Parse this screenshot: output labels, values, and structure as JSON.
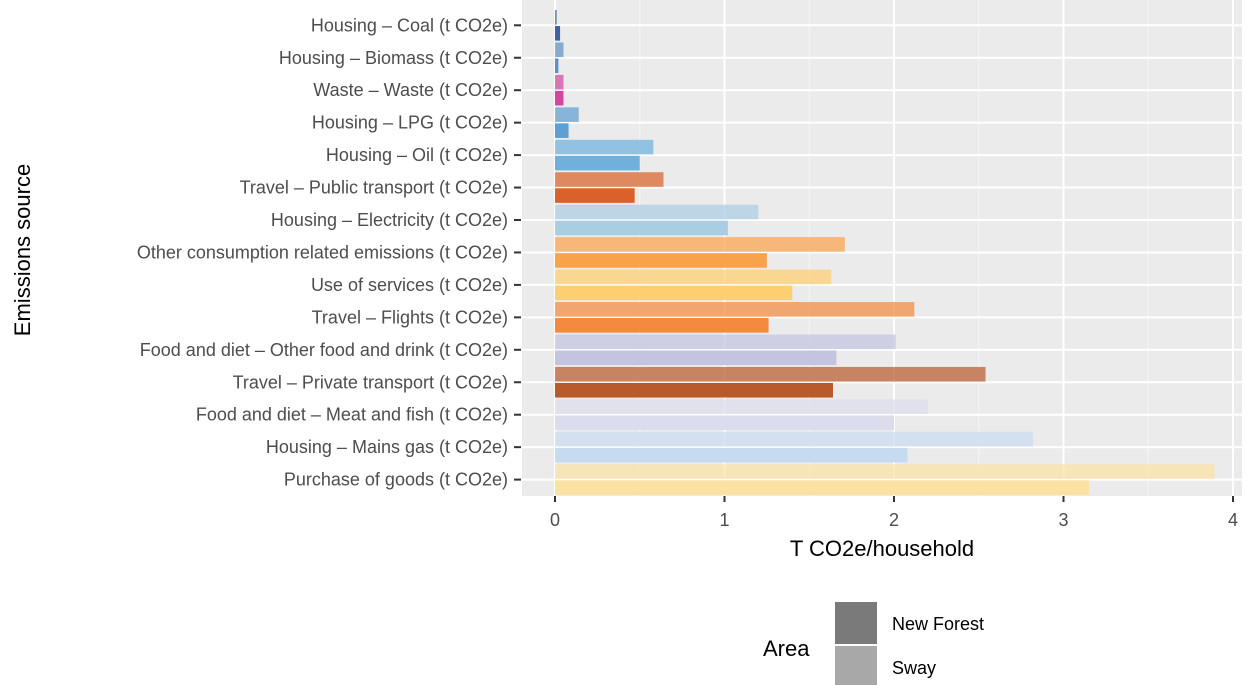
{
  "chart_data": {
    "type": "bar",
    "orientation": "horizontal",
    "xlabel": "T CO2e/household",
    "ylabel": "Emissions source",
    "xlim": [
      -0.19,
      4.1
    ],
    "xticks": [
      0,
      1,
      2,
      3,
      4
    ],
    "grid": true,
    "categories": [
      "Housing – Coal (t CO2e)",
      "Housing – Biomass (t CO2e)",
      "Waste – Waste (t CO2e)",
      "Housing – LPG (t CO2e)",
      "Housing – Oil (t CO2e)",
      "Travel – Public transport (t CO2e)",
      "Housing – Electricity (t CO2e)",
      "Other consumption related emissions (t CO2e)",
      "Use of services (t CO2e)",
      "Travel – Flights (t CO2e)",
      "Food and diet – Other food and drink (t CO2e)",
      "Travel – Private transport (t CO2e)",
      "Food and diet – Meat and fish (t CO2e)",
      "Housing – Mains gas (t CO2e)",
      "Purchase of goods (t CO2e)"
    ],
    "colors": [
      "#3a64a0",
      "#5b91c8",
      "#d147a3",
      "#5f9fd1",
      "#6fb1dc",
      "#d9622b",
      "#a9cde3",
      "#f9a24c",
      "#fdcf70",
      "#f38a3f",
      "#c2c4e0",
      "#b85a2c",
      "#dbdcec",
      "#c7dbf0",
      "#fbe2a3"
    ],
    "series": [
      {
        "name": "Sway",
        "values": [
          0.01,
          0.05,
          0.05,
          0.14,
          0.58,
          0.64,
          1.2,
          1.71,
          1.63,
          2.12,
          2.01,
          2.54,
          2.2,
          2.82,
          3.89
        ]
      },
      {
        "name": "New Forest",
        "values": [
          0.03,
          0.02,
          0.05,
          0.08,
          0.5,
          0.47,
          1.02,
          1.25,
          1.4,
          1.26,
          1.66,
          1.64,
          2.0,
          2.08,
          3.15
        ]
      }
    ],
    "legend": {
      "title": "Area",
      "position": "bottom",
      "entries": [
        {
          "label": "New Forest",
          "color": "#7a7a7a"
        },
        {
          "label": "Sway",
          "color": "#a8a8a8"
        }
      ]
    }
  }
}
